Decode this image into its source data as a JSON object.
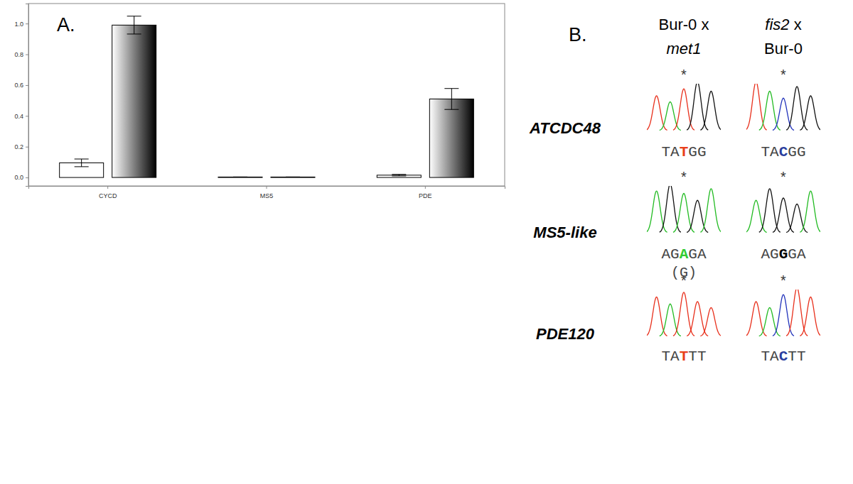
{
  "chart_data": {
    "type": "bar",
    "annotations": [
      "A."
    ],
    "categories": [
      "CYCD",
      "MS5",
      "PDE"
    ],
    "series": [
      {
        "color": "#ffffff",
        "values": [
          0.095,
          0.003,
          0.015
        ],
        "errors": [
          0.025,
          0,
          0.005
        ]
      },
      {
        "color": "#000000",
        "values": [
          0.99,
          0.003,
          0.51
        ],
        "errors": [
          0.058,
          0,
          0.068
        ]
      }
    ],
    "ylim": [
      -0.055,
      1.13
    ],
    "yticks": [
      {
        "value": 0,
        "label": "0.0"
      },
      {
        "value": 0.2,
        "label": "0.2"
      },
      {
        "value": 0.4,
        "label": "0.4"
      },
      {
        "value": 0.6,
        "label": "0.6"
      },
      {
        "value": 0.8,
        "label": "0.8"
      },
      {
        "value": 1,
        "label": "1.0"
      }
    ],
    "grid": false
  },
  "panel_b": {
    "label": "B.",
    "asterisk": "*",
    "columns": [
      [
        [
          {
            "text": "Bur-0 x"
          }
        ],
        [
          {
            "text": "met1",
            "italic": true
          }
        ]
      ],
      [
        [
          {
            "text": "fis2",
            "italic": true
          },
          {
            "text": " x"
          }
        ],
        [
          {
            "text": "Bur-0"
          }
        ]
      ]
    ],
    "rows": [
      {
        "gene": "ATCDC48",
        "traces": [
          {
            "sequence": [
              "TA",
              "T",
              "GG"
            ],
            "color": "#e8401c"
          },
          {
            "sequence": [
              "TA",
              "C",
              "GG"
            ],
            "color": "#2b3f9e"
          }
        ]
      },
      {
        "gene": "MS5-like",
        "traces": [
          {
            "sequence": [
              "AG",
              "A",
              "GA"
            ],
            "color": "#33cc33",
            "note": "(G)"
          },
          {
            "sequence": [
              "AG",
              "G",
              "GA"
            ],
            "color": "#000000"
          }
        ]
      },
      {
        "gene": "PDE120",
        "traces": [
          {
            "sequence": [
              "TA",
              "T",
              "TT"
            ],
            "color": "#e8401c"
          },
          {
            "sequence": [
              "TA",
              "C",
              "TT"
            ],
            "color": "#2b3f9e"
          }
        ]
      }
    ]
  }
}
